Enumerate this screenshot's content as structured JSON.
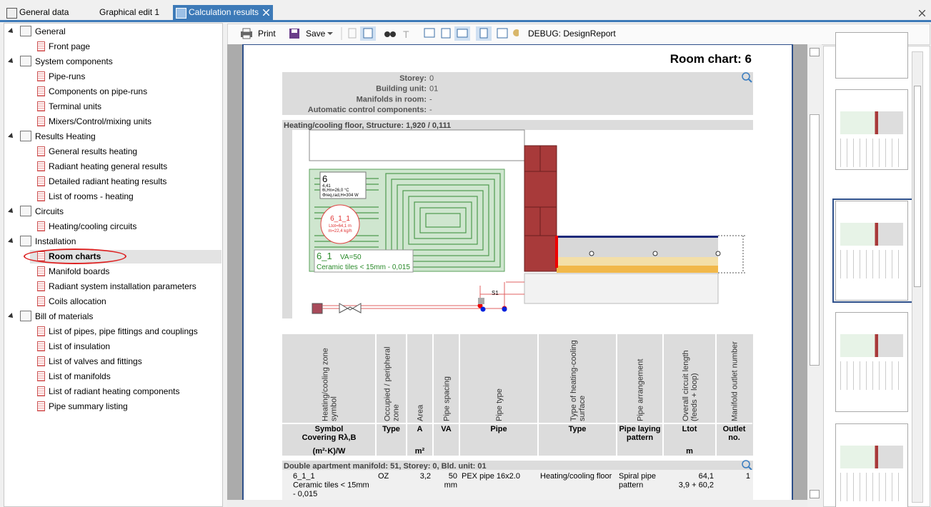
{
  "tabs": [
    "General data",
    "Graphical edit 1",
    "Calculation results"
  ],
  "tree": [
    {
      "label": "General",
      "children": [
        "Front page"
      ]
    },
    {
      "label": "System components",
      "children": [
        "Pipe-runs",
        "Components on pipe-runs",
        "Terminal units",
        "Mixers/Control/mixing units"
      ]
    },
    {
      "label": "Results Heating",
      "children": [
        "General results heating",
        "Radiant heating general results",
        "Detailed radiant heating results",
        "List of rooms - heating"
      ]
    },
    {
      "label": "Circuits",
      "children": [
        "Heating/cooling circuits"
      ]
    },
    {
      "label": "Installation",
      "children": [
        "Room charts",
        "Manifold boards",
        "Radiant system installation parameters",
        "Coils allocation"
      ]
    },
    {
      "label": "Bill of materials",
      "children": [
        "List of pipes, pipe fittings and couplings",
        "List of insulation",
        "List of valves and fittings",
        "List of manifolds",
        "List of radiant heating components",
        "Pipe summary listing"
      ]
    }
  ],
  "toolbar": {
    "print": "Print",
    "save": "Save",
    "debug": "DEBUG: DesignReport"
  },
  "report": {
    "title": "Room chart: 6",
    "info": [
      {
        "label": "Storey:",
        "value": "0"
      },
      {
        "label": "Building unit:",
        "value": "01"
      },
      {
        "label": "Manifolds in room:",
        "value": "-"
      },
      {
        "label": "Automatic control components:",
        "value": "-"
      }
    ],
    "section": "Heating/cooling floor, Structure: 1,920 / 0,111",
    "drawing": {
      "room": "6",
      "room_area": "4,41",
      "room_temp": "θi,Hn=26,0 °C",
      "room_load": "Φreq,rad,H=304 W",
      "circuit": "6_1_1",
      "circuit_length": "Ltot=64,1 m",
      "circuit_flow": "m=22,4 kg/h",
      "zone": "6_1",
      "zone_va": "VA=50",
      "zone_covering": "Ceramic tiles < 15mm - 0,015",
      "valve": "S1"
    },
    "table": {
      "rotated_headers": [
        [
          "Heating/cooling zone",
          "symbol"
        ],
        [
          "Occupied / peripheral",
          "zone"
        ],
        [
          "Area"
        ],
        [
          "Pipe spacing"
        ],
        [
          "Pipe type"
        ],
        [
          "Type of heating-cooling",
          "surface"
        ],
        [
          "Pipe arrangement"
        ],
        [
          "Overall circuit length",
          "(feeds + loop)"
        ],
        [
          "Manifold outlet number"
        ]
      ],
      "headers": [
        [
          "Symbol",
          "Covering Rλ,B"
        ],
        [
          "Type"
        ],
        [
          "A"
        ],
        [
          "VA"
        ],
        [
          "Pipe"
        ],
        [
          "Type"
        ],
        [
          "Pipe laying",
          "pattern"
        ],
        [
          "Ltot"
        ],
        [
          "Outlet",
          "no."
        ]
      ],
      "units": [
        "(m²·K)/W",
        null,
        "m²",
        null,
        null,
        null,
        null,
        "m",
        null
      ],
      "group": "Double apartment manifold: 51, Storey: 0, Bld. unit: 01",
      "rows": [
        [
          [
            "6_1_1",
            "Ceramic tiles < 15mm",
            "- 0,015"
          ],
          [
            "OZ"
          ],
          [
            "3,2"
          ],
          [
            "50",
            "mm"
          ],
          [
            "PEX pipe 16x2.0"
          ],
          [
            "Heating/cooling floor"
          ],
          [
            "Spiral pipe",
            "pattern"
          ],
          [
            "64,1",
            "3,9 + 60,2"
          ],
          [
            "1"
          ]
        ]
      ]
    }
  }
}
